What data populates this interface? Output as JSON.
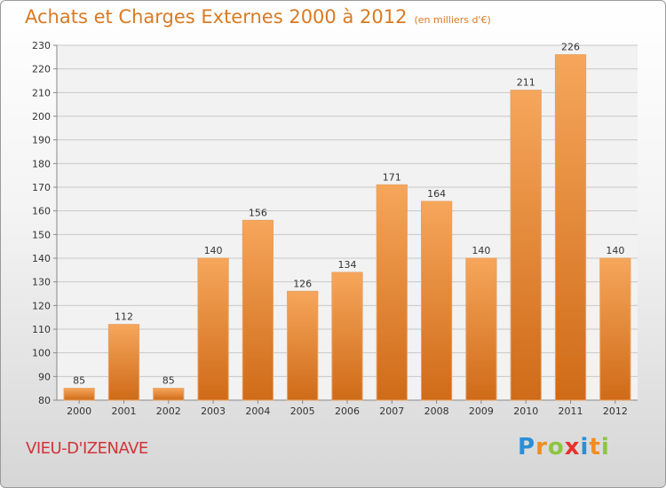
{
  "title": "Achats et Charges Externes 2000 à 2012",
  "subtitle": "(en milliers d'€)",
  "location_label": "VIEU-D'IZENAVE",
  "logo": {
    "text": "Proxiti",
    "letters": [
      {
        "ch": "P",
        "color": "#2a8fd6"
      },
      {
        "ch": "r",
        "color": "#f28c1e"
      },
      {
        "ch": "o",
        "color": "#8cc63f"
      },
      {
        "ch": "x",
        "color": "#e8312f"
      },
      {
        "ch": "i",
        "color": "#2a8fd6"
      },
      {
        "ch": "t",
        "color": "#f28c1e"
      },
      {
        "ch": "i",
        "color": "#8cc63f"
      }
    ]
  },
  "colors": {
    "bar_top": "#f6a65b",
    "bar_bottom": "#cf6b18",
    "title": "#d97a22",
    "location": "#d2333a",
    "grid": "#c8c8c8"
  },
  "chart_data": {
    "type": "bar",
    "categories": [
      "2000",
      "2001",
      "2002",
      "2003",
      "2004",
      "2005",
      "2006",
      "2007",
      "2008",
      "2009",
      "2010",
      "2011",
      "2012"
    ],
    "values": [
      85,
      112,
      85,
      140,
      156,
      126,
      134,
      171,
      164,
      140,
      211,
      226,
      140
    ],
    "title": "Achats et Charges Externes 2000 à 2012",
    "xlabel": "",
    "ylabel": "",
    "ylim": [
      80,
      230
    ],
    "yticks": [
      80,
      90,
      100,
      110,
      120,
      130,
      140,
      150,
      160,
      170,
      180,
      190,
      200,
      210,
      220,
      230
    ],
    "grid": true,
    "legend": "none"
  }
}
